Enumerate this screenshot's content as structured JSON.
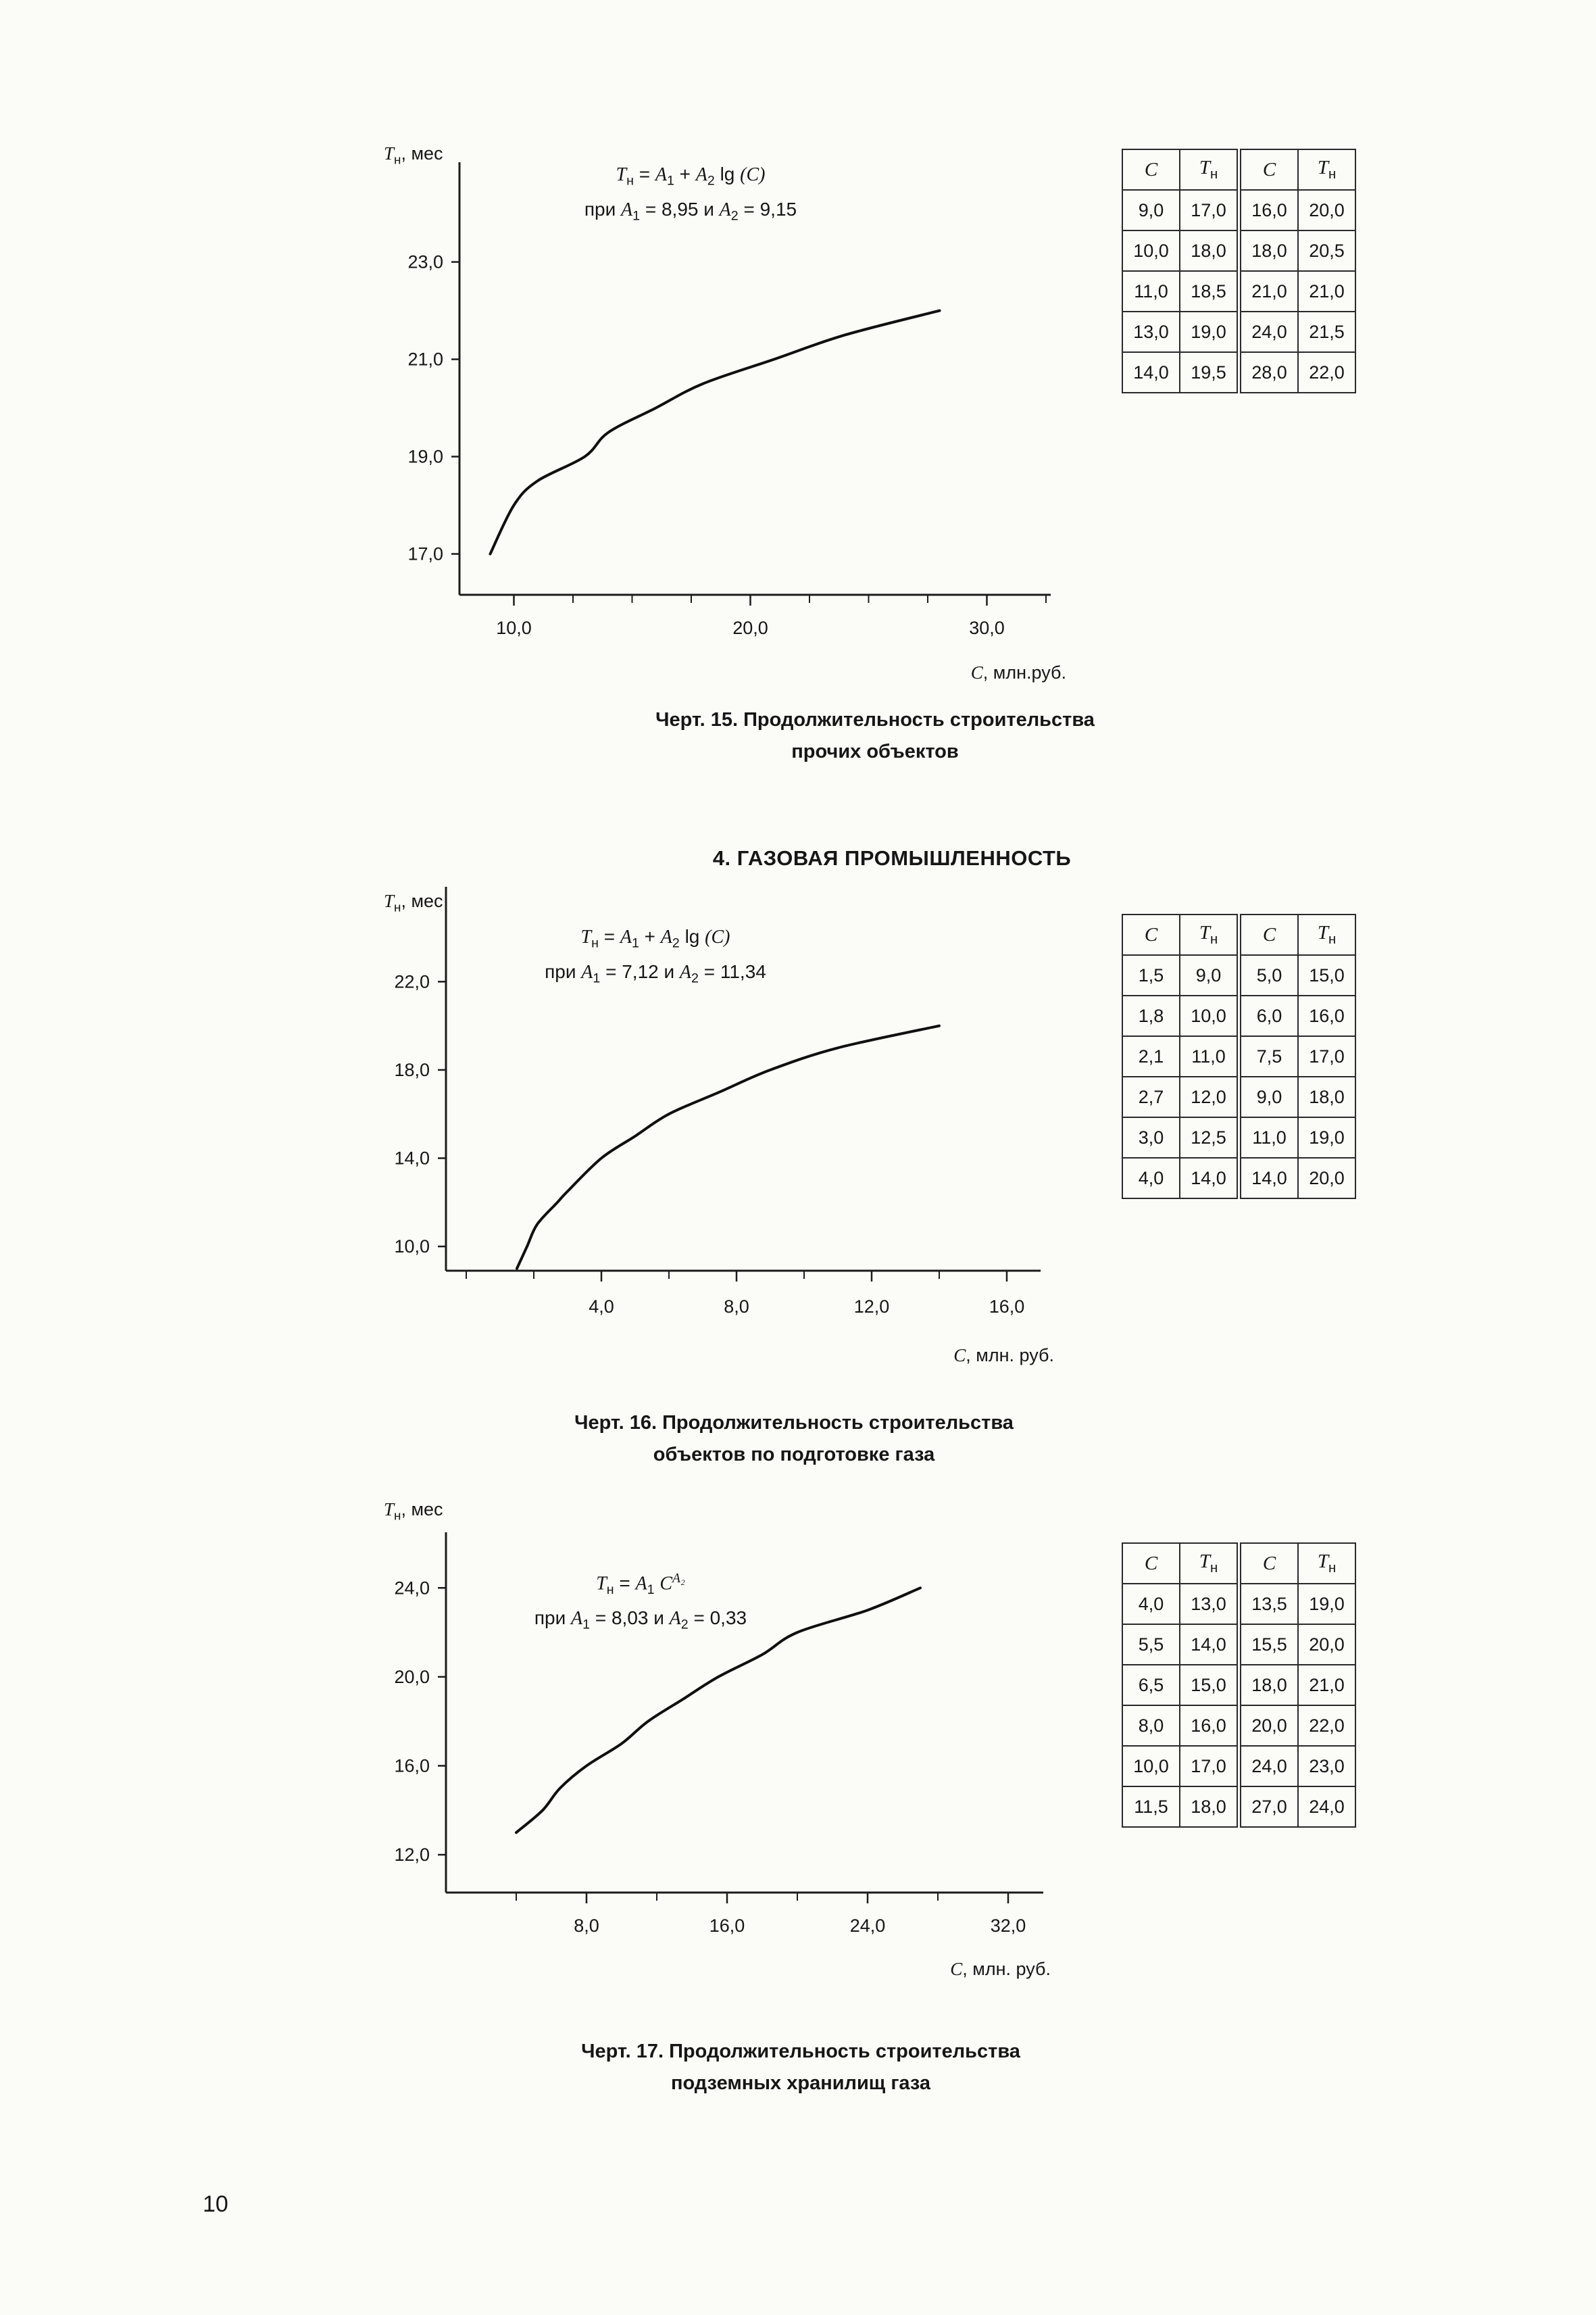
{
  "page_number": "10",
  "section_header": "4. ГАЗОВАЯ ПРОМЫШЛЕННОСТЬ",
  "figures": [
    {
      "name": "Черт. 15",
      "ylabel_segments": [
        {
          "t": "T",
          "i": 1
        },
        {
          "t": "н",
          "sub": 1
        },
        {
          "t": ", мес"
        }
      ],
      "xlabel_segments": [
        {
          "t": "С",
          "i": 1
        },
        {
          "t": ", млн.руб."
        }
      ],
      "formula_line1": [
        {
          "t": "T",
          "i": 1
        },
        {
          "t": "н",
          "sub": 1
        },
        {
          "t": " = "
        },
        {
          "t": "A",
          "i": 1
        },
        {
          "t": "1",
          "sub": 1
        },
        {
          "t": " + "
        },
        {
          "t": "A",
          "i": 1
        },
        {
          "t": "2",
          "sub": 1
        },
        {
          "t": " lg "
        },
        {
          "t": "(C)",
          "i": 1
        }
      ],
      "formula_line2": [
        {
          "t": "при "
        },
        {
          "t": "A",
          "i": 1
        },
        {
          "t": "1",
          "sub": 1
        },
        {
          "t": " = 8,95 и "
        },
        {
          "t": "A",
          "i": 1
        },
        {
          "t": "2",
          "sub": 1
        },
        {
          "t": " = 9,15"
        }
      ],
      "caption_lines": [
        "Черт. 15. Продолжительность строительства",
        "прочих объектов"
      ],
      "table": {
        "headers": [
          [
            {
              "t": "C",
              "i": 1
            }
          ],
          [
            {
              "t": "T",
              "i": 1
            },
            {
              "t": "н",
              "sub": 1
            }
          ],
          [
            {
              "t": "C",
              "i": 1
            }
          ],
          [
            {
              "t": "T",
              "i": 1
            },
            {
              "t": "н",
              "sub": 1
            }
          ]
        ],
        "rows": [
          [
            "9,0",
            "17,0",
            "16,0",
            "20,0"
          ],
          [
            "10,0",
            "18,0",
            "18,0",
            "20,5"
          ],
          [
            "11,0",
            "18,5",
            "21,0",
            "21,0"
          ],
          [
            "13,0",
            "19,0",
            "24,0",
            "21,5"
          ],
          [
            "14,0",
            "19,5",
            "28,0",
            "22,0"
          ]
        ]
      }
    },
    {
      "name": "Черт. 16",
      "ylabel_segments": [
        {
          "t": "T",
          "i": 1
        },
        {
          "t": "н",
          "sub": 1
        },
        {
          "t": ", мес"
        }
      ],
      "xlabel_segments": [
        {
          "t": "С",
          "i": 1
        },
        {
          "t": ", млн. руб."
        }
      ],
      "formula_line1": [
        {
          "t": "T",
          "i": 1
        },
        {
          "t": "н",
          "sub": 1
        },
        {
          "t": " = "
        },
        {
          "t": "A",
          "i": 1
        },
        {
          "t": "1",
          "sub": 1
        },
        {
          "t": " + "
        },
        {
          "t": "A",
          "i": 1
        },
        {
          "t": "2",
          "sub": 1
        },
        {
          "t": " lg "
        },
        {
          "t": "(C)",
          "i": 1
        }
      ],
      "formula_line2": [
        {
          "t": "при "
        },
        {
          "t": "A",
          "i": 1
        },
        {
          "t": "1",
          "sub": 1
        },
        {
          "t": " = 7,12 и "
        },
        {
          "t": "A",
          "i": 1
        },
        {
          "t": "2",
          "sub": 1
        },
        {
          "t": " = 11,34"
        }
      ],
      "caption_lines": [
        "Черт. 16. Продолжительность строительства",
        "объектов по подготовке газа"
      ],
      "table": {
        "headers": [
          [
            {
              "t": "C",
              "i": 1
            }
          ],
          [
            {
              "t": "T",
              "i": 1
            },
            {
              "t": "н",
              "sub": 1
            }
          ],
          [
            {
              "t": "C",
              "i": 1
            }
          ],
          [
            {
              "t": "T",
              "i": 1
            },
            {
              "t": "н",
              "sub": 1
            }
          ]
        ],
        "rows": [
          [
            "1,5",
            "9,0",
            "5,0",
            "15,0"
          ],
          [
            "1,8",
            "10,0",
            "6,0",
            "16,0"
          ],
          [
            "2,1",
            "11,0",
            "7,5",
            "17,0"
          ],
          [
            "2,7",
            "12,0",
            "9,0",
            "18,0"
          ],
          [
            "3,0",
            "12,5",
            "11,0",
            "19,0"
          ],
          [
            "4,0",
            "14,0",
            "14,0",
            "20,0"
          ]
        ]
      }
    },
    {
      "name": "Черт. 17",
      "ylabel_segments": [
        {
          "t": "T",
          "i": 1
        },
        {
          "t": "н",
          "sub": 1
        },
        {
          "t": ", мес"
        }
      ],
      "xlabel_segments": [
        {
          "t": "С",
          "i": 1
        },
        {
          "t": ", млн. руб."
        }
      ],
      "formula_line1": [
        {
          "t": "T",
          "i": 1
        },
        {
          "t": "н",
          "sub": 1
        },
        {
          "t": " = "
        },
        {
          "t": "A",
          "i": 1
        },
        {
          "t": "1",
          "sub": 1
        },
        {
          "t": " "
        },
        {
          "t": "C",
          "i": 1
        },
        {
          "t": "A₂",
          "sup": 1,
          "i": 1
        }
      ],
      "formula_line2": [
        {
          "t": "при "
        },
        {
          "t": "A",
          "i": 1
        },
        {
          "t": "1",
          "sub": 1
        },
        {
          "t": " = 8,03 и "
        },
        {
          "t": "A",
          "i": 1
        },
        {
          "t": "2",
          "sub": 1
        },
        {
          "t": " = 0,33"
        }
      ],
      "caption_lines": [
        "Черт. 17. Продолжительность строительства",
        "подземных хранилищ газа"
      ],
      "table": {
        "headers": [
          [
            {
              "t": "C",
              "i": 1
            }
          ],
          [
            {
              "t": "T",
              "i": 1
            },
            {
              "t": "н",
              "sub": 1
            }
          ],
          [
            {
              "t": "C",
              "i": 1
            }
          ],
          [
            {
              "t": "T",
              "i": 1
            },
            {
              "t": "н",
              "sub": 1
            }
          ]
        ],
        "rows": [
          [
            "4,0",
            "13,0",
            "13,5",
            "19,0"
          ],
          [
            "5,5",
            "14,0",
            "15,5",
            "20,0"
          ],
          [
            "6,5",
            "15,0",
            "18,0",
            "21,0"
          ],
          [
            "8,0",
            "16,0",
            "20,0",
            "22,0"
          ],
          [
            "10,0",
            "17,0",
            "24,0",
            "23,0"
          ],
          [
            "11,5",
            "18,0",
            "27,0",
            "24,0"
          ]
        ]
      }
    }
  ],
  "chart_data": [
    {
      "type": "line",
      "title": "Черт. 15. Продолжительность строительства прочих объектов",
      "xlabel": "С, млн.руб.",
      "ylabel": "Tн, мес",
      "x": [
        9,
        10,
        11,
        13,
        14,
        16,
        18,
        21,
        24,
        28
      ],
      "y": [
        17,
        18,
        18.5,
        19,
        19.5,
        20,
        20.5,
        21,
        21.5,
        22
      ],
      "formula": {
        "kind": "log",
        "expr": "Tн = A1 + A2 lg(C)",
        "A1": 8.95,
        "A2": 9.15
      },
      "xlim": [
        7.7,
        32.7
      ],
      "ylim": [
        16.16,
        25.05
      ],
      "x_ticks": [
        10,
        20,
        30
      ],
      "x_tick_labels": [
        "10,0",
        "20,0",
        "30,0"
      ],
      "y_ticks": [
        17,
        19,
        21,
        23
      ],
      "y_tick_labels": [
        "17,0",
        "19,0",
        "21,0",
        "23,0"
      ],
      "x_minor_step": 2.5,
      "grid": false,
      "legend": false
    },
    {
      "type": "line",
      "title": "Черт. 16. Продолжительность строительства объектов по подготовке газа",
      "xlabel": "С, млн. руб.",
      "ylabel": "Tн, мес",
      "x": [
        1.5,
        1.8,
        2.1,
        2.7,
        3,
        4,
        5,
        6,
        7.5,
        9,
        11,
        14
      ],
      "y": [
        9,
        10,
        11,
        12,
        12.5,
        14,
        15,
        16,
        17,
        18,
        19,
        20
      ],
      "formula": {
        "kind": "log",
        "expr": "Tн = A1 + A2 lg(C)",
        "A1": 7.12,
        "A2": 11.34
      },
      "xlim": [
        -0.6,
        17
      ],
      "ylim": [
        8.9,
        26.3
      ],
      "x_ticks": [
        4,
        8,
        12,
        16
      ],
      "x_tick_labels": [
        "4,0",
        "8,0",
        "12,0",
        "16,0"
      ],
      "y_ticks": [
        10,
        14,
        18,
        22
      ],
      "y_tick_labels": [
        "10,0",
        "14,0",
        "18,0",
        "22,0"
      ],
      "x_minor_step": 2,
      "grid": false,
      "legend": false
    },
    {
      "type": "line",
      "title": "Черт. 17. Продолжительность строительства подземных хранилищ газа",
      "xlabel": "С, млн. руб.",
      "ylabel": "Tн, мес",
      "x": [
        4,
        5.5,
        6.5,
        8,
        10,
        11.5,
        13.5,
        15.5,
        18,
        20,
        24,
        27
      ],
      "y": [
        13,
        14,
        15,
        16,
        17,
        18,
        19,
        20,
        21,
        22,
        23,
        24
      ],
      "formula": {
        "kind": "pow",
        "expr": "Tн = A1 · C^A2",
        "A1": 8.03,
        "A2": 0.33
      },
      "xlim": [
        0,
        34
      ],
      "ylim": [
        10.3,
        26.5
      ],
      "x_ticks": [
        8,
        16,
        24,
        32
      ],
      "x_tick_labels": [
        "8,0",
        "16,0",
        "24,0",
        "32,0"
      ],
      "y_ticks": [
        12,
        16,
        20,
        24
      ],
      "y_tick_labels": [
        "12,0",
        "16,0",
        "20,0",
        "24,0"
      ],
      "x_minor_step": 4,
      "grid": false,
      "legend": false
    }
  ]
}
